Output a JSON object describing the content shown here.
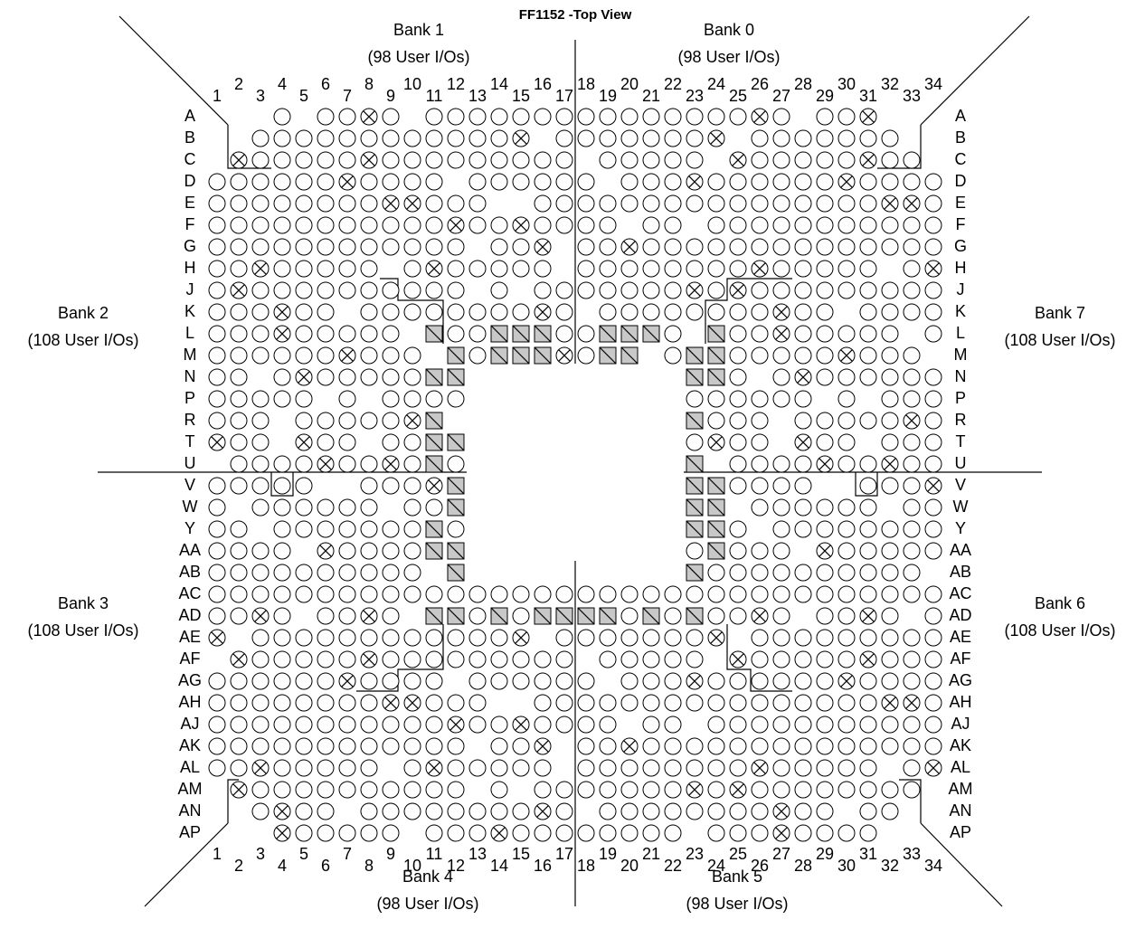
{
  "title": "FF1152 -Top View",
  "banks": [
    {
      "name": "Bank 1",
      "ios": "(98 User I/Os)"
    },
    {
      "name": "Bank 0",
      "ios": "(98 User I/Os)"
    },
    {
      "name": "Bank 2",
      "ios": "(108 User I/Os)"
    },
    {
      "name": "Bank 7",
      "ios": "(108 User I/Os)"
    },
    {
      "name": "Bank 3",
      "ios": "(108 User I/Os)"
    },
    {
      "name": "Bank 6",
      "ios": "(108 User I/Os)"
    },
    {
      "name": "Bank 4",
      "ios": "(98 User I/Os)"
    },
    {
      "name": "Bank 5",
      "ios": "(98 User I/Os)"
    }
  ],
  "columns": [
    "1",
    "2",
    "3",
    "4",
    "5",
    "6",
    "7",
    "8",
    "9",
    "10",
    "11",
    "12",
    "13",
    "14",
    "15",
    "16",
    "17",
    "18",
    "19",
    "20",
    "21",
    "22",
    "23",
    "24",
    "25",
    "26",
    "27",
    "28",
    "29",
    "30",
    "31",
    "32",
    "33",
    "34"
  ],
  "rows": [
    "A",
    "B",
    "C",
    "D",
    "E",
    "F",
    "G",
    "H",
    "J",
    "K",
    "L",
    "M",
    "N",
    "P",
    "R",
    "T",
    "U",
    "V",
    "W",
    "Y",
    "AA",
    "AB",
    "AC",
    "AD",
    "AE",
    "AF",
    "AG",
    "AH",
    "AJ",
    "AK",
    "AL",
    "AM",
    "AN",
    "AP"
  ]
}
